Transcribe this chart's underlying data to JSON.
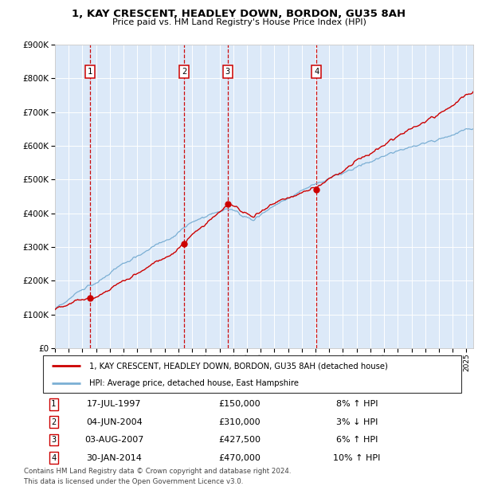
{
  "title1": "1, KAY CRESCENT, HEADLEY DOWN, BORDON, GU35 8AH",
  "title2": "Price paid vs. HM Land Registry's House Price Index (HPI)",
  "legend_line1": "1, KAY CRESCENT, HEADLEY DOWN, BORDON, GU35 8AH (detached house)",
  "legend_line2": "HPI: Average price, detached house, East Hampshire",
  "footer1": "Contains HM Land Registry data © Crown copyright and database right 2024.",
  "footer2": "This data is licensed under the Open Government Licence v3.0.",
  "sale_points": [
    {
      "num": 1,
      "date": "17-JUL-1997",
      "price": 150000,
      "pct": "8%",
      "dir": "↑",
      "year": 1997.54
    },
    {
      "num": 2,
      "date": "04-JUN-2004",
      "price": 310000,
      "pct": "3%",
      "dir": "↓",
      "year": 2004.42
    },
    {
      "num": 3,
      "date": "03-AUG-2007",
      "price": 427500,
      "pct": "6%",
      "dir": "↑",
      "year": 2007.59
    },
    {
      "num": 4,
      "date": "30-JAN-2014",
      "price": 470000,
      "pct": "10%",
      "dir": "↑",
      "year": 2014.08
    }
  ],
  "ylim": [
    0,
    900000
  ],
  "xlim_start": 1995.0,
  "xlim_end": 2025.5,
  "bg_color": "#dce9f8",
  "line_color_hpi": "#7bafd4",
  "line_color_price": "#cc0000",
  "marker_color": "#cc0000",
  "vline_color": "#cc0000",
  "box_color": "#cc0000",
  "grid_color": "#ffffff"
}
